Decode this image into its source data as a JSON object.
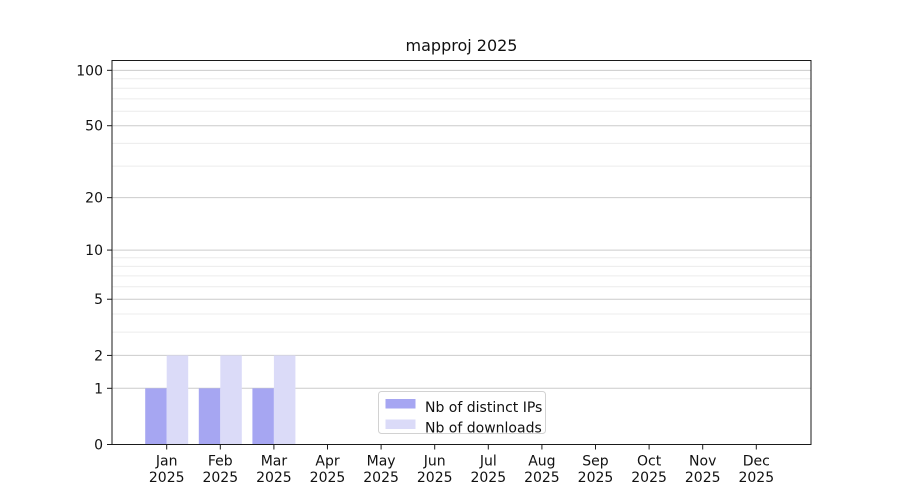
{
  "chart_data": {
    "type": "bar",
    "title": "mapproj 2025",
    "categories": [
      "Jan",
      "Feb",
      "Mar",
      "Apr",
      "May",
      "Jun",
      "Jul",
      "Aug",
      "Sep",
      "Oct",
      "Nov",
      "Dec"
    ],
    "year_label": "2025",
    "series": [
      {
        "name": "Nb of distinct IPs",
        "color": "#a6a6f2",
        "values": [
          1,
          1,
          1,
          0,
          0,
          0,
          0,
          0,
          0,
          0,
          0,
          0
        ]
      },
      {
        "name": "Nb of downloads",
        "color": "#dbdbf8",
        "values": [
          2,
          2,
          2,
          0,
          0,
          0,
          0,
          0,
          0,
          0,
          0,
          0
        ]
      }
    ],
    "xlabel": "",
    "ylabel": "",
    "yscale": "log1p",
    "ylim": [
      0,
      113
    ],
    "y_tick_labels": [
      "0",
      "1",
      "2",
      "5",
      "10",
      "20",
      "50",
      "100"
    ],
    "y_major_ticks": [
      0,
      1,
      2,
      5,
      10,
      20,
      50,
      100
    ],
    "y_minor_gridlines": [
      3,
      4,
      6,
      7,
      8,
      9,
      30,
      40,
      60,
      70,
      80,
      90
    ],
    "grid": "horizontal",
    "legend_position": "lower center",
    "colors": {
      "major_grid": "#cccccc",
      "minor_grid": "#ececec",
      "spine": "#1a1a1a",
      "legend_border": "#d2d2d2",
      "background": "#ffffff"
    }
  }
}
